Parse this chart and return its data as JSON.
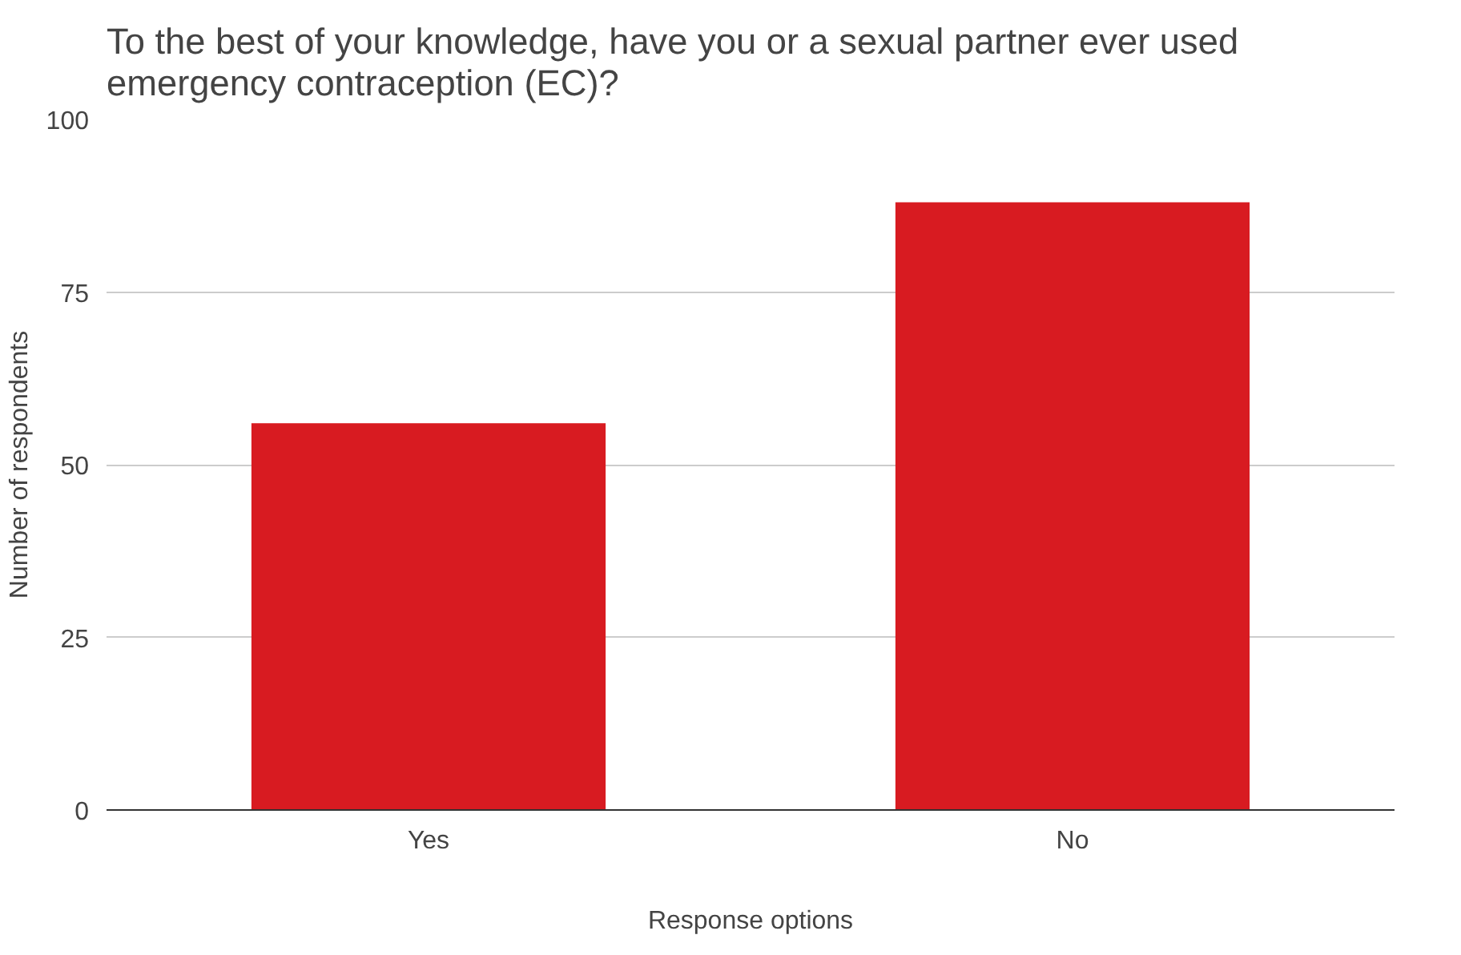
{
  "chart_data": {
    "type": "bar",
    "title": "To the best of your knowledge, have you or a sexual partner ever used emergency contraception (EC)?",
    "xlabel": "Response options",
    "ylabel": "Number of respondents",
    "categories": [
      "Yes",
      "No"
    ],
    "values": [
      56,
      88
    ],
    "color": "#d81b21",
    "ylim": [
      0,
      100
    ],
    "yticks": [
      0,
      25,
      50,
      75,
      100
    ],
    "grid": "y"
  }
}
